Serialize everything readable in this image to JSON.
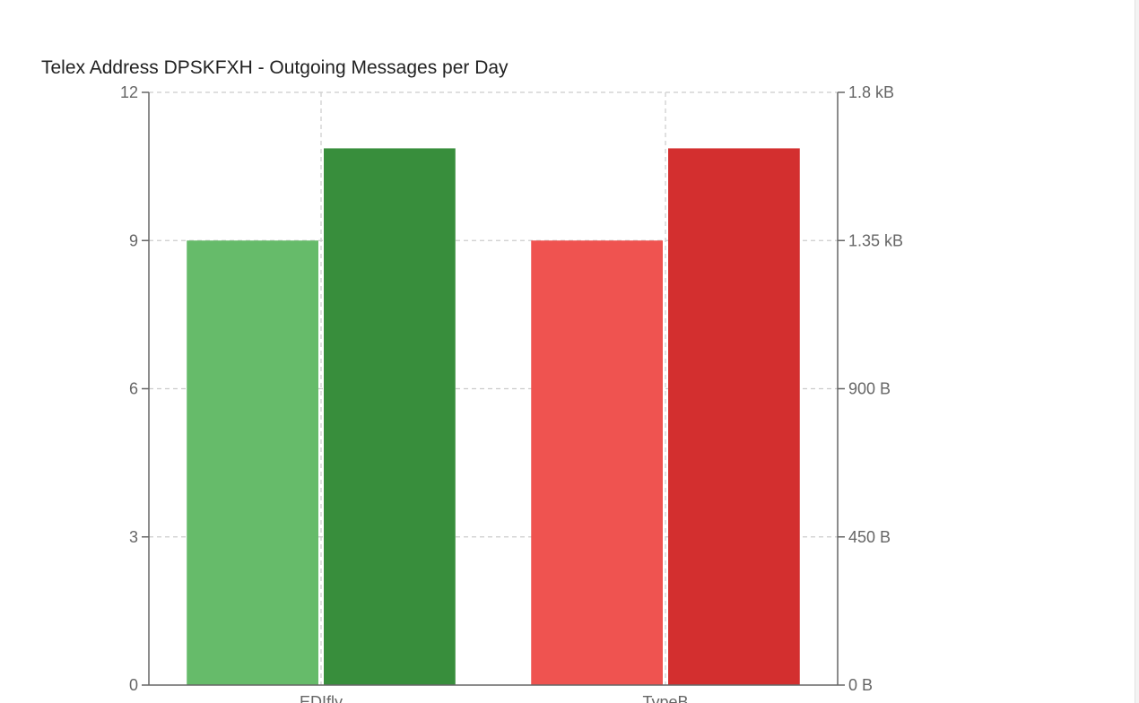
{
  "chart_data": {
    "type": "bar",
    "title": "Telex Address DPSKFXH - Outgoing Messages per Day",
    "categories": [
      "EDIfly",
      "TypeB"
    ],
    "series": [
      {
        "axis": "left",
        "values": [
          9,
          9
        ],
        "colors": [
          "#66bb6a",
          "#ef5350"
        ]
      },
      {
        "axis": "right",
        "values": [
          1630,
          1630
        ],
        "colors": [
          "#388e3c",
          "#d32f2f"
        ]
      }
    ],
    "y_left": {
      "ylim": [
        0,
        12
      ],
      "ticks": [
        0,
        3,
        6,
        9,
        12
      ],
      "tick_labels": [
        "0",
        "3",
        "6",
        "9",
        "12"
      ]
    },
    "y_right": {
      "ylim": [
        0,
        1800
      ],
      "ticks": [
        0,
        450,
        900,
        1350,
        1800
      ],
      "tick_labels": [
        "0 B",
        "450 B",
        "900 B",
        "1.35 kB",
        "1.8 kB"
      ]
    },
    "grid": true,
    "legend": "none"
  }
}
